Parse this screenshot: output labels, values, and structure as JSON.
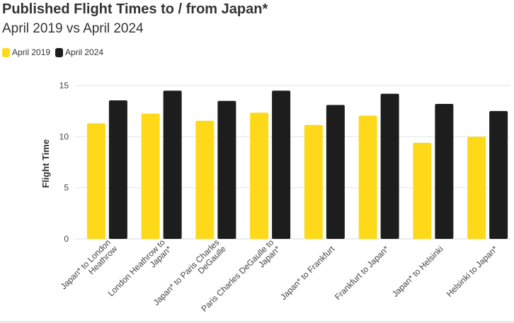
{
  "title": "Published Flight Times to / from Japan*",
  "subtitle": "April 2019 vs April 2024",
  "colors": {
    "april_2019": "#fed91a",
    "april_2024": "#1d1d1d",
    "grid": "#e6e6e6",
    "text": "#333333"
  },
  "chart_data": {
    "type": "bar",
    "title": "Published Flight Times to / from Japan*",
    "subtitle": "April 2019 vs April 2024",
    "xlabel": "",
    "ylabel": "Flight Time",
    "ylim": [
      0,
      15
    ],
    "yticks": [
      0,
      5,
      10,
      15
    ],
    "grid": true,
    "legend_position": "top-left",
    "categories": [
      "Japan* to London Heathrow",
      "London Heathrow to Japan*",
      "Japan* to Paris Charles DeGaulle",
      "Paris Charles DeGaulle to Japan*",
      "Japan* to Frankfurt",
      "Frankfurt to Japan*",
      "Japan* to Helsinki",
      "Helsinki to Japan*"
    ],
    "category_label_lines": [
      [
        "Japan* to London",
        "Heathrow"
      ],
      [
        "London Heathrow to",
        "Japan*"
      ],
      [
        "Japan* to Paris Charles",
        "DeGaulle"
      ],
      [
        "Paris Charles DeGaulle to",
        "Japan*"
      ],
      [
        "Japan* to Frankfurt"
      ],
      [
        "Frankfurt to Japan*"
      ],
      [
        "Japan* to Helsinki"
      ],
      [
        "Helsinki to Japan*"
      ]
    ],
    "series": [
      {
        "name": "April 2019",
        "color": "#fed91a",
        "values": [
          11.3,
          12.25,
          11.55,
          12.35,
          11.15,
          12.05,
          9.4,
          10.0
        ]
      },
      {
        "name": "April 2024",
        "color": "#1d1d1d",
        "values": [
          13.55,
          14.5,
          13.5,
          14.5,
          13.1,
          14.2,
          13.2,
          12.5
        ]
      }
    ]
  }
}
